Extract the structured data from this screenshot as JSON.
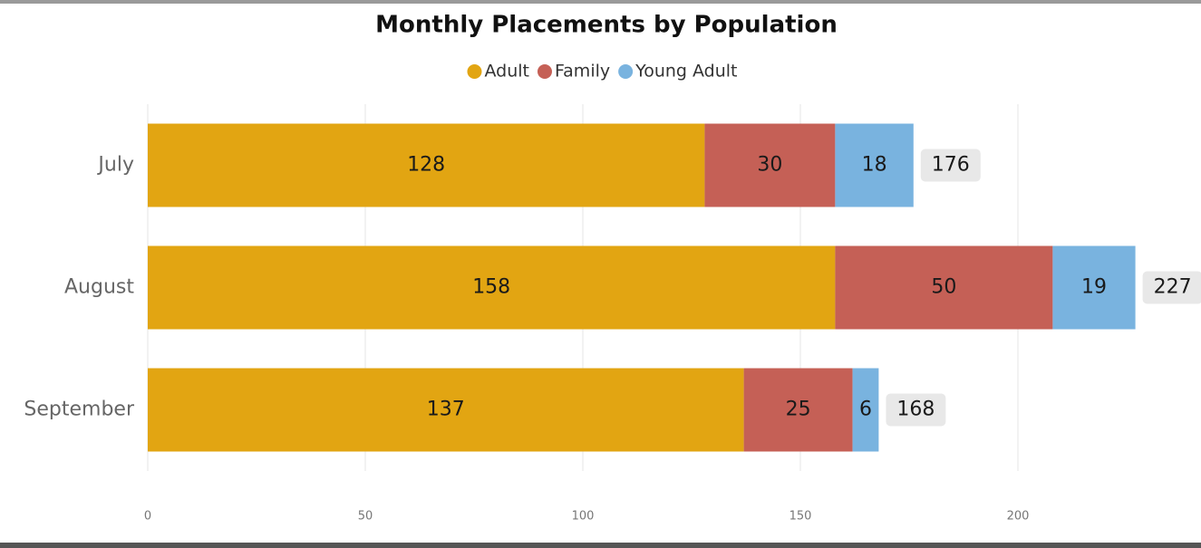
{
  "chart_data": {
    "type": "stacked-bar-horizontal",
    "title": "Monthly Placements by Population",
    "categories": [
      "July",
      "August",
      "September"
    ],
    "series": [
      {
        "name": "Adult",
        "color": "#e2a512",
        "values": [
          128,
          158,
          137
        ]
      },
      {
        "name": "Family",
        "color": "#c56056",
        "values": [
          30,
          50,
          25
        ]
      },
      {
        "name": "Young Adult",
        "color": "#79b3df",
        "values": [
          18,
          19,
          6
        ]
      }
    ],
    "totals": [
      176,
      227,
      168
    ],
    "xlim": [
      0,
      240
    ],
    "xticks": [
      0,
      50,
      100,
      150,
      200
    ],
    "grid": true,
    "legend": "top"
  }
}
